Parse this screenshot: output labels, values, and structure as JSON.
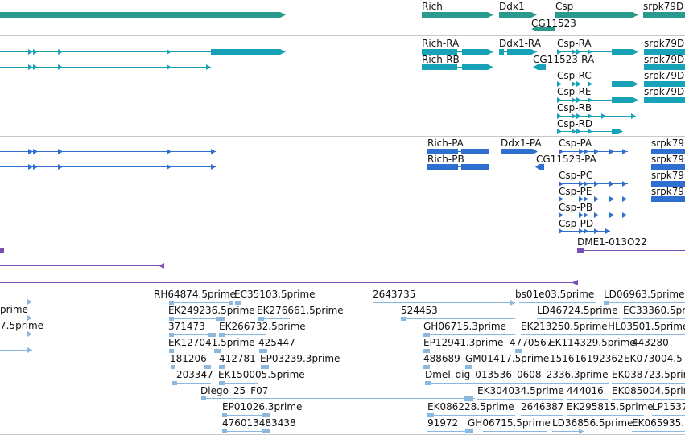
{
  "colors": {
    "gene": "#2a9a8e",
    "transcript": "#17a2b8",
    "protein": "#2f6fcf",
    "repeat": "#7a4fb5",
    "est": "#8ab8de"
  },
  "gene_track": {
    "labels": [
      "Rich",
      "Ddx1",
      "Csp",
      "srpk79D",
      "CG11523"
    ]
  },
  "transcript_track": {
    "labels": [
      "Rich-RA",
      "Rich-RB",
      "Ddx1-RA",
      "CG11523-RA",
      "Csp-RA",
      "Csp-RC",
      "Csp-RE",
      "Csp-RB",
      "Csp-RD",
      "srpk79D",
      "srpk79D",
      "srpk79D",
      "srpk79D"
    ]
  },
  "protein_track": {
    "labels": [
      "Rich-PA",
      "Rich-PB",
      "Ddx1-PA",
      "CG11523-PA",
      "Csp-PA",
      "Csp-PC",
      "Csp-PE",
      "Csp-PB",
      "Csp-PD",
      "srpk79",
      "srpk79",
      "srpk79",
      "srpk79"
    ]
  },
  "repeat_track": {
    "labels": [
      "DME1-013O22"
    ]
  },
  "est_track": {
    "labels": [
      "prime",
      "7.5prime",
      "RH64874.5prime",
      "EC35103.5prime",
      "EK249236.5prime",
      "EK276661.5prime",
      "371473",
      "EK266732.5prime",
      "EK127041.5prime",
      "425447",
      "181206",
      "412781",
      "EP03239.3prime",
      "203347",
      "EK150005.5prime",
      "Diego_25_F07",
      "EP01026.3prime",
      "476013483438",
      "2643735",
      "524453",
      "GH06715.3prime",
      "EP12941.3prime",
      "4770567",
      "488689",
      "GM01417.5prime",
      "Dmel_dig_013536_0608_2336.3prime",
      "EK304034.5prime",
      "EK086228.5prime",
      "2646387",
      "91972",
      "GH06715.5prime",
      "bs01e03.5prime",
      "LD06963.5prime",
      "LD46724.5prime",
      "EC33360.5prime",
      "EK213250.5prime",
      "HL03501.5prime",
      "EK114329.5prime",
      "443280",
      "151616192362",
      "EK073004.5",
      "EK038723.5prime",
      "444016",
      "EK085004.5prime",
      "EK295815.5prime",
      "LP1537",
      "LD36856.5prime",
      "EK065935."
    ]
  }
}
